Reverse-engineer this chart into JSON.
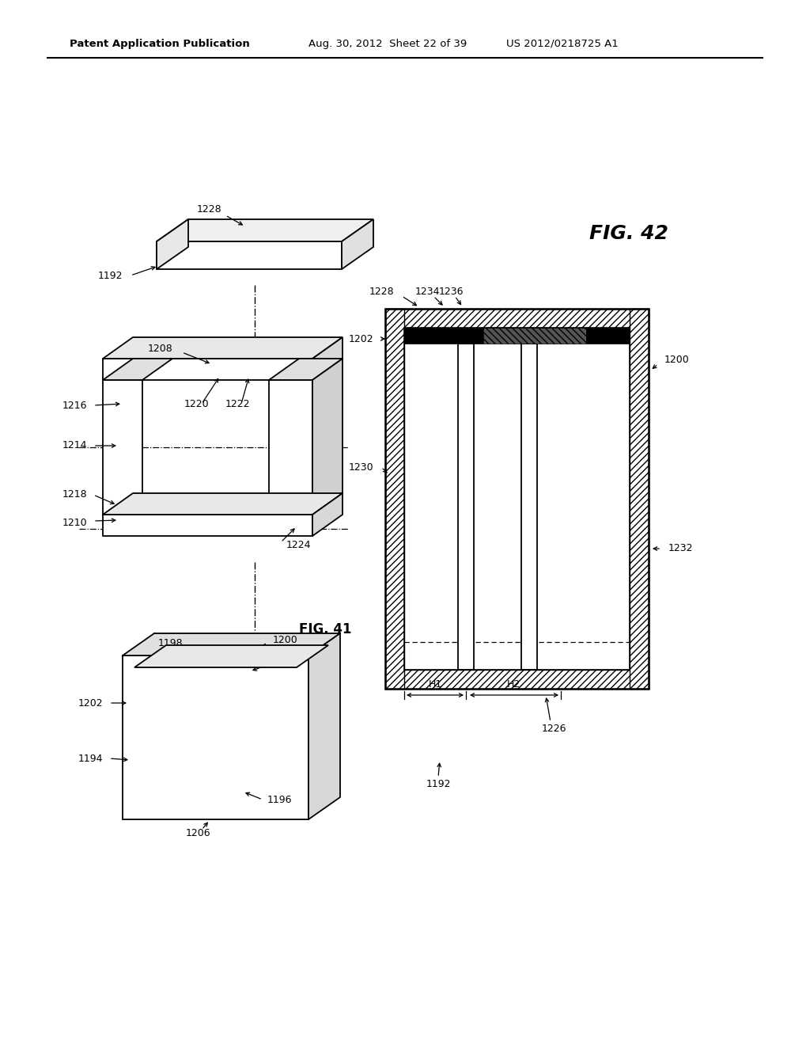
{
  "header_left": "Patent Application Publication",
  "header_mid": "Aug. 30, 2012  Sheet 22 of 39",
  "header_right": "US 2012/0218725 A1",
  "fig41_label": "FIG. 41",
  "fig42_label": "FIG. 42",
  "bg_color": "#ffffff"
}
